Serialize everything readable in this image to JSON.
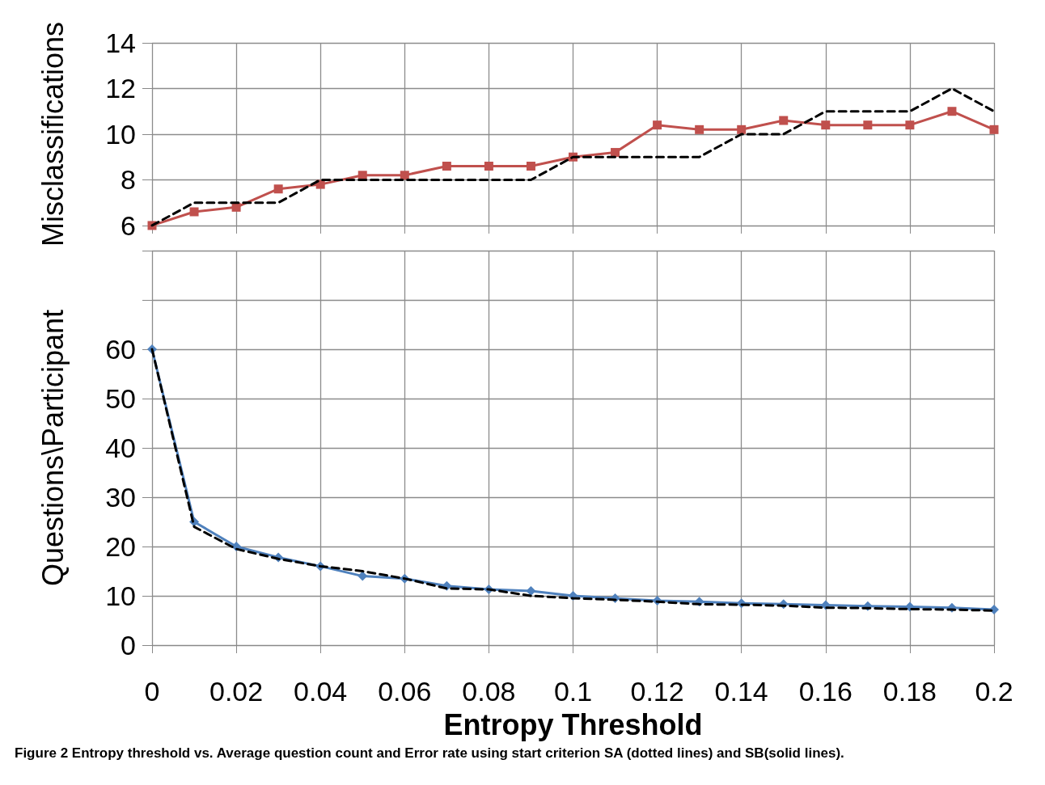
{
  "chart_data": [
    {
      "type": "line",
      "ylabel": "Misclassifications",
      "x": [
        0,
        0.01,
        0.02,
        0.03,
        0.04,
        0.05,
        0.06,
        0.07,
        0.08,
        0.09,
        0.1,
        0.11,
        0.12,
        0.13,
        0.14,
        0.15,
        0.16,
        0.17,
        0.18,
        0.19,
        0.2
      ],
      "series": [
        {
          "color": "#000000",
          "line_style": "dashed",
          "marker": "none",
          "values": [
            6,
            7,
            7,
            7,
            8,
            8,
            8,
            8,
            8,
            8,
            9,
            9,
            9,
            9,
            10,
            10,
            11,
            11,
            11,
            12,
            11
          ]
        },
        {
          "color": "#c0504d",
          "line_style": "solid",
          "marker": "square",
          "values": [
            6,
            6.6,
            6.8,
            7.6,
            7.8,
            8.2,
            8.2,
            8.6,
            8.6,
            8.6,
            9,
            9.2,
            10.4,
            10.2,
            10.2,
            10.6,
            10.4,
            10.4,
            10.4,
            11,
            10.2
          ]
        }
      ],
      "xlim": [
        0,
        0.2
      ],
      "xticks": [
        0,
        0.02,
        0.04,
        0.06,
        0.08,
        0.1,
        0.12,
        0.14,
        0.16,
        0.18,
        0.2
      ],
      "ylim": [
        6,
        14
      ],
      "yticks": [
        6,
        8,
        10,
        12,
        14
      ],
      "grid": true,
      "tick_labels": "y"
    },
    {
      "type": "line",
      "ylabel": "Questions\\Participant",
      "xlabel": "Entropy Threshold",
      "x": [
        0,
        0.01,
        0.02,
        0.03,
        0.04,
        0.05,
        0.06,
        0.07,
        0.08,
        0.09,
        0.1,
        0.11,
        0.12,
        0.13,
        0.14,
        0.15,
        0.16,
        0.17,
        0.18,
        0.19,
        0.2
      ],
      "series": [
        {
          "color": "#000000",
          "line_style": "dashed",
          "marker": "none",
          "values": [
            60,
            24,
            19.5,
            17.5,
            16,
            15,
            13.5,
            11.5,
            11.3,
            10,
            9.5,
            9.2,
            8.8,
            8.3,
            8.2,
            8,
            7.6,
            7.5,
            7.3,
            7.2,
            7
          ]
        },
        {
          "color": "#4f81bd",
          "line_style": "solid",
          "marker": "diamond",
          "values": [
            60,
            25,
            20,
            17.8,
            16,
            14,
            13.5,
            12,
            11.3,
            11,
            10,
            9.5,
            9,
            8.8,
            8.5,
            8.3,
            8.1,
            7.9,
            7.8,
            7.6,
            7.2
          ]
        }
      ],
      "xlim": [
        0,
        0.2
      ],
      "xticks": [
        0,
        0.02,
        0.04,
        0.06,
        0.08,
        0.1,
        0.12,
        0.14,
        0.16,
        0.18,
        0.2
      ],
      "ylim": [
        0,
        80
      ],
      "yticks": [
        0,
        10,
        20,
        30,
        40,
        50,
        60,
        {
          "value": 70,
          "label": null
        },
        {
          "value": 80,
          "label": null
        }
      ],
      "grid": true,
      "annotations": [
        "Figure 2 Entropy threshold vs. Average question count and Error rate using start criterion SA (dotted lines) and SB(solid lines)."
      ]
    }
  ]
}
